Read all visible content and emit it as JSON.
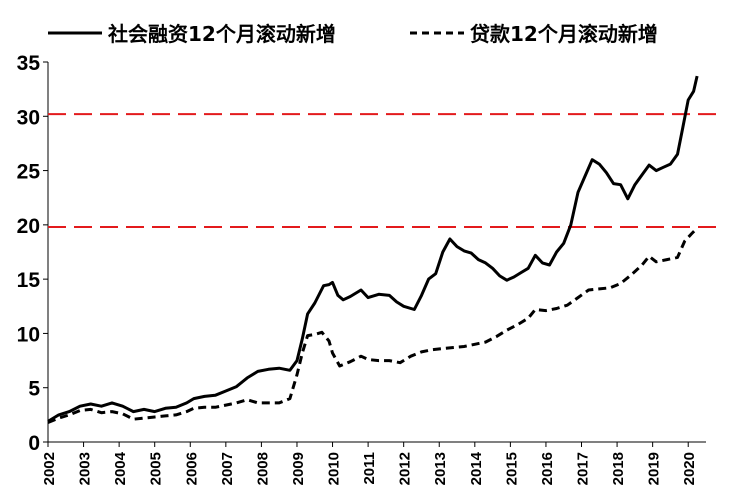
{
  "chart_data": {
    "type": "line",
    "title": "",
    "xlabel": "",
    "ylabel": "",
    "x_range": [
      2002,
      2020.5
    ],
    "ylim": [
      0,
      35
    ],
    "yticks": [
      "0",
      "5",
      "10",
      "15",
      "20",
      "25",
      "30",
      "35"
    ],
    "xticks": [
      "2002",
      "2003",
      "2004",
      "2005",
      "2006",
      "2007",
      "2008",
      "2009",
      "2010",
      "2011",
      "2012",
      "2013",
      "2014",
      "2015",
      "2016",
      "2017",
      "2018",
      "2019",
      "2020"
    ],
    "grid": false,
    "legend": "top",
    "series": [
      {
        "name": "社会融资12个月滚动新增",
        "style": "solid",
        "color": "#000000",
        "points": [
          [
            2002.0,
            1.9
          ],
          [
            2002.3,
            2.5
          ],
          [
            2002.6,
            2.8
          ],
          [
            2002.9,
            3.3
          ],
          [
            2003.2,
            3.5
          ],
          [
            2003.5,
            3.3
          ],
          [
            2003.8,
            3.6
          ],
          [
            2004.1,
            3.3
          ],
          [
            2004.4,
            2.8
          ],
          [
            2004.7,
            3.0
          ],
          [
            2005.0,
            2.8
          ],
          [
            2005.3,
            3.1
          ],
          [
            2005.6,
            3.2
          ],
          [
            2005.9,
            3.6
          ],
          [
            2006.1,
            4.0
          ],
          [
            2006.4,
            4.2
          ],
          [
            2006.7,
            4.3
          ],
          [
            2007.0,
            4.7
          ],
          [
            2007.3,
            5.1
          ],
          [
            2007.6,
            5.9
          ],
          [
            2007.9,
            6.5
          ],
          [
            2008.2,
            6.7
          ],
          [
            2008.5,
            6.8
          ],
          [
            2008.8,
            6.6
          ],
          [
            2009.0,
            7.5
          ],
          [
            2009.15,
            9.5
          ],
          [
            2009.3,
            11.8
          ],
          [
            2009.5,
            12.8
          ],
          [
            2009.75,
            14.4
          ],
          [
            2009.9,
            14.5
          ],
          [
            2010.0,
            14.7
          ],
          [
            2010.15,
            13.5
          ],
          [
            2010.3,
            13.1
          ],
          [
            2010.5,
            13.4
          ],
          [
            2010.8,
            14.0
          ],
          [
            2011.0,
            13.3
          ],
          [
            2011.3,
            13.6
          ],
          [
            2011.6,
            13.5
          ],
          [
            2011.8,
            12.9
          ],
          [
            2012.0,
            12.5
          ],
          [
            2012.3,
            12.2
          ],
          [
            2012.5,
            13.5
          ],
          [
            2012.7,
            15.0
          ],
          [
            2012.9,
            15.5
          ],
          [
            2013.1,
            17.5
          ],
          [
            2013.3,
            18.7
          ],
          [
            2013.5,
            18.0
          ],
          [
            2013.7,
            17.6
          ],
          [
            2013.9,
            17.4
          ],
          [
            2014.1,
            16.8
          ],
          [
            2014.3,
            16.5
          ],
          [
            2014.5,
            16.0
          ],
          [
            2014.7,
            15.3
          ],
          [
            2014.9,
            14.9
          ],
          [
            2015.1,
            15.2
          ],
          [
            2015.3,
            15.6
          ],
          [
            2015.5,
            16.0
          ],
          [
            2015.7,
            17.2
          ],
          [
            2015.9,
            16.5
          ],
          [
            2016.1,
            16.3
          ],
          [
            2016.3,
            17.5
          ],
          [
            2016.5,
            18.3
          ],
          [
            2016.7,
            20.0
          ],
          [
            2016.9,
            23.0
          ],
          [
            2017.1,
            24.5
          ],
          [
            2017.3,
            26.0
          ],
          [
            2017.5,
            25.6
          ],
          [
            2017.7,
            24.8
          ],
          [
            2017.9,
            23.8
          ],
          [
            2018.1,
            23.7
          ],
          [
            2018.3,
            22.4
          ],
          [
            2018.5,
            23.7
          ],
          [
            2018.7,
            24.6
          ],
          [
            2018.9,
            25.5
          ],
          [
            2019.1,
            25.0
          ],
          [
            2019.3,
            25.3
          ],
          [
            2019.5,
            25.6
          ],
          [
            2019.7,
            26.5
          ],
          [
            2019.85,
            29.0
          ],
          [
            2020.0,
            31.5
          ],
          [
            2020.15,
            32.3
          ],
          [
            2020.25,
            33.7
          ]
        ]
      },
      {
        "name": "贷款12个月滚动新增",
        "style": "dashed",
        "color": "#000000",
        "points": [
          [
            2002.0,
            1.8
          ],
          [
            2002.3,
            2.2
          ],
          [
            2002.6,
            2.5
          ],
          [
            2002.9,
            2.9
          ],
          [
            2003.2,
            3.0
          ],
          [
            2003.5,
            2.7
          ],
          [
            2003.8,
            2.8
          ],
          [
            2004.1,
            2.6
          ],
          [
            2004.4,
            2.1
          ],
          [
            2004.7,
            2.2
          ],
          [
            2005.0,
            2.3
          ],
          [
            2005.3,
            2.4
          ],
          [
            2005.6,
            2.5
          ],
          [
            2005.9,
            2.8
          ],
          [
            2006.1,
            3.1
          ],
          [
            2006.4,
            3.2
          ],
          [
            2006.7,
            3.2
          ],
          [
            2007.0,
            3.4
          ],
          [
            2007.3,
            3.6
          ],
          [
            2007.6,
            3.9
          ],
          [
            2007.9,
            3.6
          ],
          [
            2008.2,
            3.6
          ],
          [
            2008.5,
            3.6
          ],
          [
            2008.8,
            4.0
          ],
          [
            2009.0,
            6.2
          ],
          [
            2009.15,
            8.2
          ],
          [
            2009.3,
            9.8
          ],
          [
            2009.5,
            9.9
          ],
          [
            2009.7,
            10.1
          ],
          [
            2009.9,
            9.3
          ],
          [
            2010.0,
            8.2
          ],
          [
            2010.2,
            7.0
          ],
          [
            2010.5,
            7.4
          ],
          [
            2010.8,
            7.9
          ],
          [
            2011.0,
            7.6
          ],
          [
            2011.3,
            7.5
          ],
          [
            2011.6,
            7.5
          ],
          [
            2011.9,
            7.3
          ],
          [
            2012.2,
            7.9
          ],
          [
            2012.5,
            8.3
          ],
          [
            2012.8,
            8.5
          ],
          [
            2013.1,
            8.6
          ],
          [
            2013.4,
            8.7
          ],
          [
            2013.7,
            8.8
          ],
          [
            2014.0,
            9.0
          ],
          [
            2014.3,
            9.2
          ],
          [
            2014.6,
            9.7
          ],
          [
            2014.9,
            10.3
          ],
          [
            2015.2,
            10.8
          ],
          [
            2015.5,
            11.4
          ],
          [
            2015.7,
            12.2
          ],
          [
            2016.0,
            12.1
          ],
          [
            2016.3,
            12.3
          ],
          [
            2016.6,
            12.6
          ],
          [
            2016.9,
            13.3
          ],
          [
            2017.2,
            14.0
          ],
          [
            2017.5,
            14.1
          ],
          [
            2017.8,
            14.2
          ],
          [
            2018.1,
            14.6
          ],
          [
            2018.4,
            15.4
          ],
          [
            2018.7,
            16.3
          ],
          [
            2018.9,
            17.1
          ],
          [
            2019.1,
            16.6
          ],
          [
            2019.4,
            16.8
          ],
          [
            2019.7,
            17.0
          ],
          [
            2019.9,
            18.5
          ],
          [
            2020.1,
            19.2
          ],
          [
            2020.25,
            19.7
          ]
        ]
      }
    ],
    "reference_lines": [
      {
        "y": 30.2,
        "color": "#e31a1c",
        "style": "dashed"
      },
      {
        "y": 19.8,
        "color": "#e31a1c",
        "style": "dashed"
      }
    ]
  }
}
